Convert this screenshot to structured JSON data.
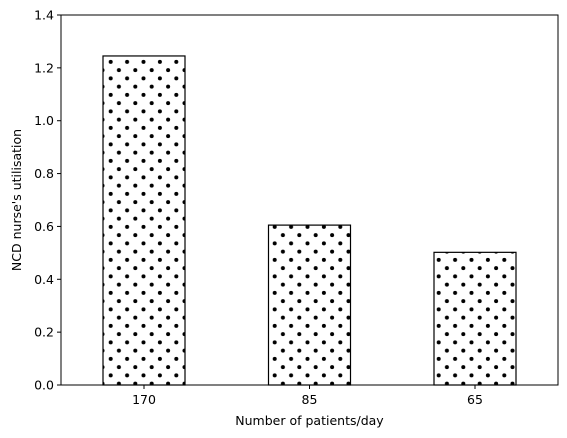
{
  "chart_data": {
    "type": "bar",
    "title": "",
    "xlabel": "Number of patients/day",
    "ylabel": "NCD nurse's utilisation",
    "categories": [
      "170",
      "85",
      "65"
    ],
    "values": [
      1.245,
      0.605,
      0.502
    ],
    "ylim": [
      0,
      1.4
    ],
    "yticks": [
      0.0,
      0.2,
      0.4,
      0.6,
      0.8,
      1.0,
      1.2,
      1.4
    ],
    "ytick_labels": [
      "0.0",
      "0.2",
      "0.4",
      "0.6",
      "0.8",
      "1.0",
      "1.2",
      "1.4"
    ],
    "grid": false,
    "bar_fill": "#ffffff",
    "bar_edge": "#000000",
    "hatch": "dots"
  }
}
